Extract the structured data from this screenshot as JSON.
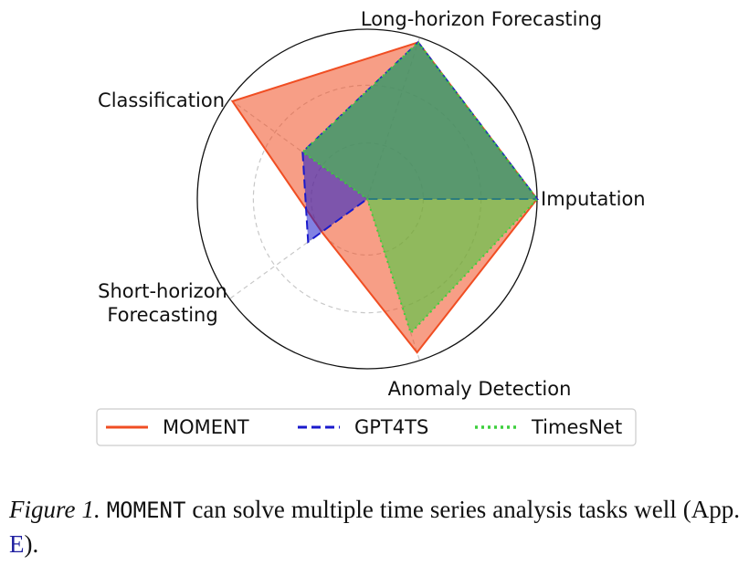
{
  "chart_data": {
    "type": "radar",
    "axes": [
      "Long-horizon Forecasting",
      "Imputation",
      "Anomaly Detection",
      "Short-horizon Forecasting",
      "Classification"
    ],
    "axis_label_lines": [
      [
        "Long-horizon Forecasting"
      ],
      [
        "Imputation"
      ],
      [
        "Anomaly Detection"
      ],
      [
        "Short-horizon",
        "Forecasting"
      ],
      [
        "Classification"
      ]
    ],
    "rmax": 1.0,
    "rings": [
      0.33,
      0.67,
      1.0
    ],
    "grid": true,
    "series": [
      {
        "name": "MOMENT",
        "values": [
          0.97,
          1.0,
          0.95,
          0.33,
          0.98
        ],
        "color": "#f04e23",
        "dash": "solid"
      },
      {
        "name": "GPT4TS",
        "values": [
          0.97,
          1.0,
          0.0,
          0.43,
          0.47
        ],
        "color": "#1a1acc",
        "dash": "dashed"
      },
      {
        "name": "TimesNet",
        "values": [
          0.97,
          1.0,
          0.83,
          0.0,
          0.47
        ],
        "color": "#3ccf3c",
        "dash": "dotted"
      }
    ],
    "legend_position": "bottom"
  },
  "caption": {
    "figure_label": "Figure 1.",
    "model_name": "MOMENT",
    "text_before_ref": " can solve multiple time series analysis tasks well (App. ",
    "ref": "E",
    "text_after_ref": ")."
  }
}
